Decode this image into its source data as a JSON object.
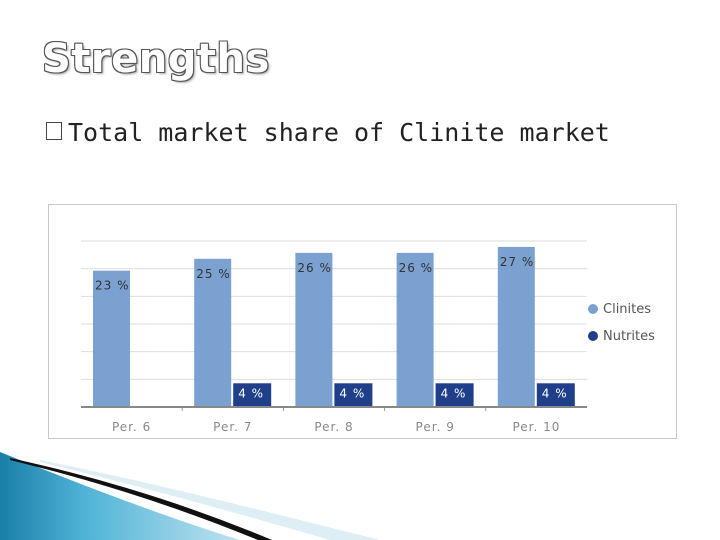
{
  "slide": {
    "title": "Strengths",
    "bullet_text": "Total market share of Clinite market"
  },
  "chart_data": {
    "type": "bar",
    "categories": [
      "Per. 6",
      "Per. 7",
      "Per. 8",
      "Per. 9",
      "Per. 10"
    ],
    "series": [
      {
        "name": "Clinites",
        "values": [
          23,
          25,
          26,
          26,
          27
        ],
        "color": "#7ba1d0"
      },
      {
        "name": "Nutrites",
        "values": [
          null,
          4,
          4,
          4,
          4
        ],
        "color": "#1f3f8a"
      }
    ],
    "data_labels": {
      "Clinites": [
        "23 %",
        "25 %",
        "26 %",
        "26 %",
        "27 %"
      ],
      "Nutrites": [
        "",
        "4 %",
        "4 %",
        "4 %",
        "4 %"
      ]
    },
    "ylim": [
      0,
      28
    ],
    "grid": true,
    "legend_position": "right",
    "title": "",
    "xlabel": "",
    "ylabel": ""
  }
}
